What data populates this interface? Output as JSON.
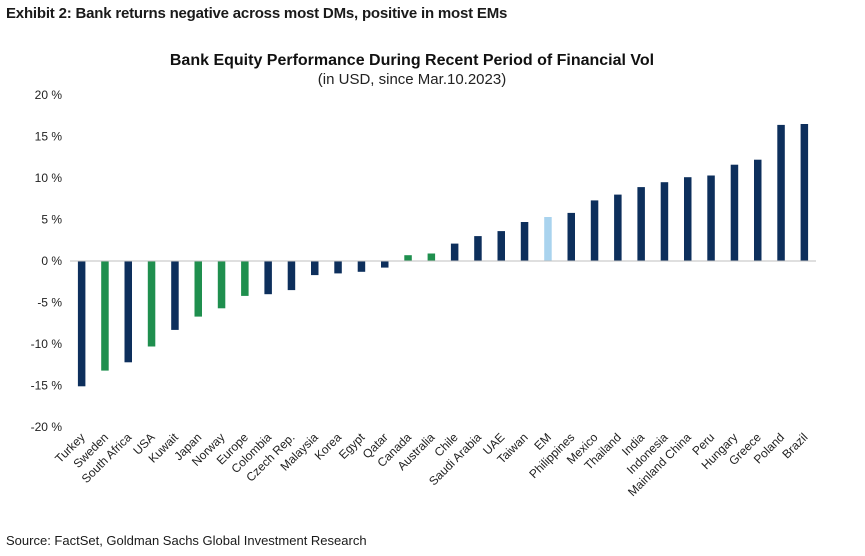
{
  "exhibit_title": "Exhibit 2: Bank returns negative across most DMs, positive in most EMs",
  "source": "Source: FactSet, Goldman Sachs Global Investment Research",
  "colors": {
    "em": "#0d2f5c",
    "dm": "#1f8f4e",
    "em_aggregate": "#a9d3ee"
  },
  "chart_data": {
    "type": "bar",
    "title": "Bank Equity Performance During Recent Period of Financial Vol",
    "subtitle": "(in USD, since Mar.10.2023)",
    "ylim": [
      -20,
      20
    ],
    "yticks": [
      -20,
      -15,
      -10,
      -5,
      0,
      5,
      10,
      15,
      20
    ],
    "ytick_labels": [
      "-20 %",
      "-15 %",
      "-10 %",
      "-5 %",
      "0 %",
      "5 %",
      "10 %",
      "15 %",
      "20 %"
    ],
    "grid": false,
    "categories": [
      "Turkey",
      "Sweden",
      "South Africa",
      "USA",
      "Kuwait",
      "Japan",
      "Norway",
      "Europe",
      "Colombia",
      "Czech Rep.",
      "Malaysia",
      "Korea",
      "Egypt",
      "Qatar",
      "Canada",
      "Australia",
      "Chile",
      "Saudi Arabia",
      "UAE",
      "Taiwan",
      "EM",
      "Philippines",
      "Mexico",
      "Thailand",
      "India",
      "Indonesia",
      "Mainland China",
      "Peru",
      "Hungary",
      "Greece",
      "Poland",
      "Brazil"
    ],
    "values": [
      -15.1,
      -13.2,
      -12.2,
      -10.3,
      -8.3,
      -6.7,
      -5.7,
      -4.2,
      -4.0,
      -3.5,
      -1.7,
      -1.5,
      -1.3,
      -0.8,
      0.7,
      0.9,
      2.1,
      3.0,
      3.6,
      4.7,
      5.3,
      5.8,
      7.3,
      8.0,
      8.9,
      9.5,
      10.1,
      10.3,
      11.6,
      12.2,
      16.4,
      16.5
    ],
    "groups": [
      "em",
      "dm",
      "em",
      "dm",
      "em",
      "dm",
      "dm",
      "dm",
      "em",
      "em",
      "em",
      "em",
      "em",
      "em",
      "dm",
      "dm",
      "em",
      "em",
      "em",
      "em",
      "em_aggregate",
      "em",
      "em",
      "em",
      "em",
      "em",
      "em",
      "em",
      "em",
      "em",
      "em",
      "em"
    ]
  }
}
